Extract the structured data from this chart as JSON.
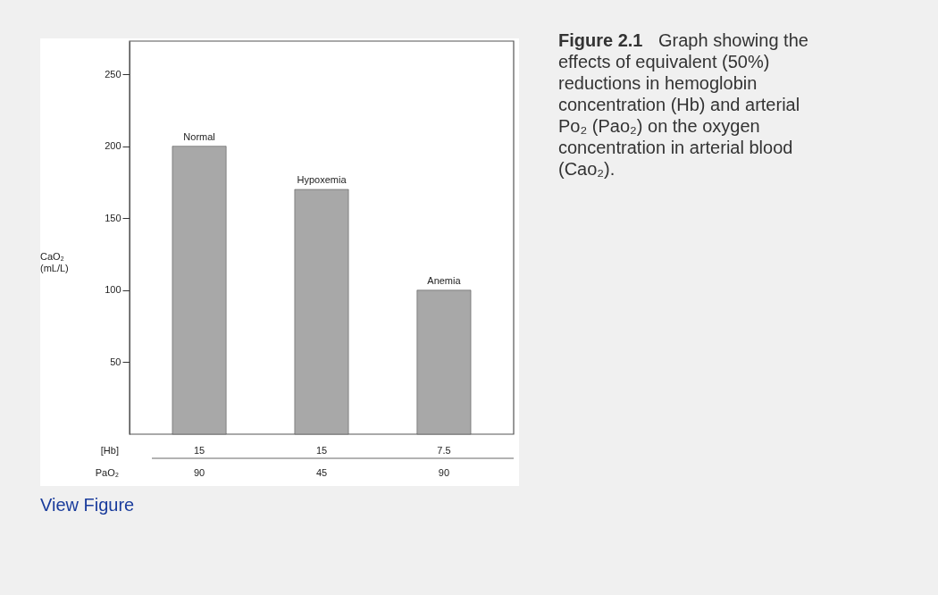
{
  "chart_data": {
    "type": "bar",
    "title": "Figure 2.1",
    "subtitle": "Graph showing the effects of equivalent (50%) reductions in hemoglobin concentration (Hb) and arterial Po₂ (Pao₂) on the oxygen concentration in arterial blood (Cao₂).",
    "ylabel": "CaO₂\n(mL/L)",
    "categories": [
      "Normal",
      "Hypoxemia",
      "Anemia"
    ],
    "values": [
      200,
      170,
      100
    ],
    "color": "#a8a8a8",
    "ylim": [
      0,
      273
    ],
    "yticks": [
      50,
      100,
      150,
      200,
      250
    ],
    "grid": false,
    "annotations": [
      "[Hb]",
      "15",
      "15",
      "7.5",
      "PaO₂",
      "90",
      "45",
      "90",
      "View Figure"
    ]
  }
}
